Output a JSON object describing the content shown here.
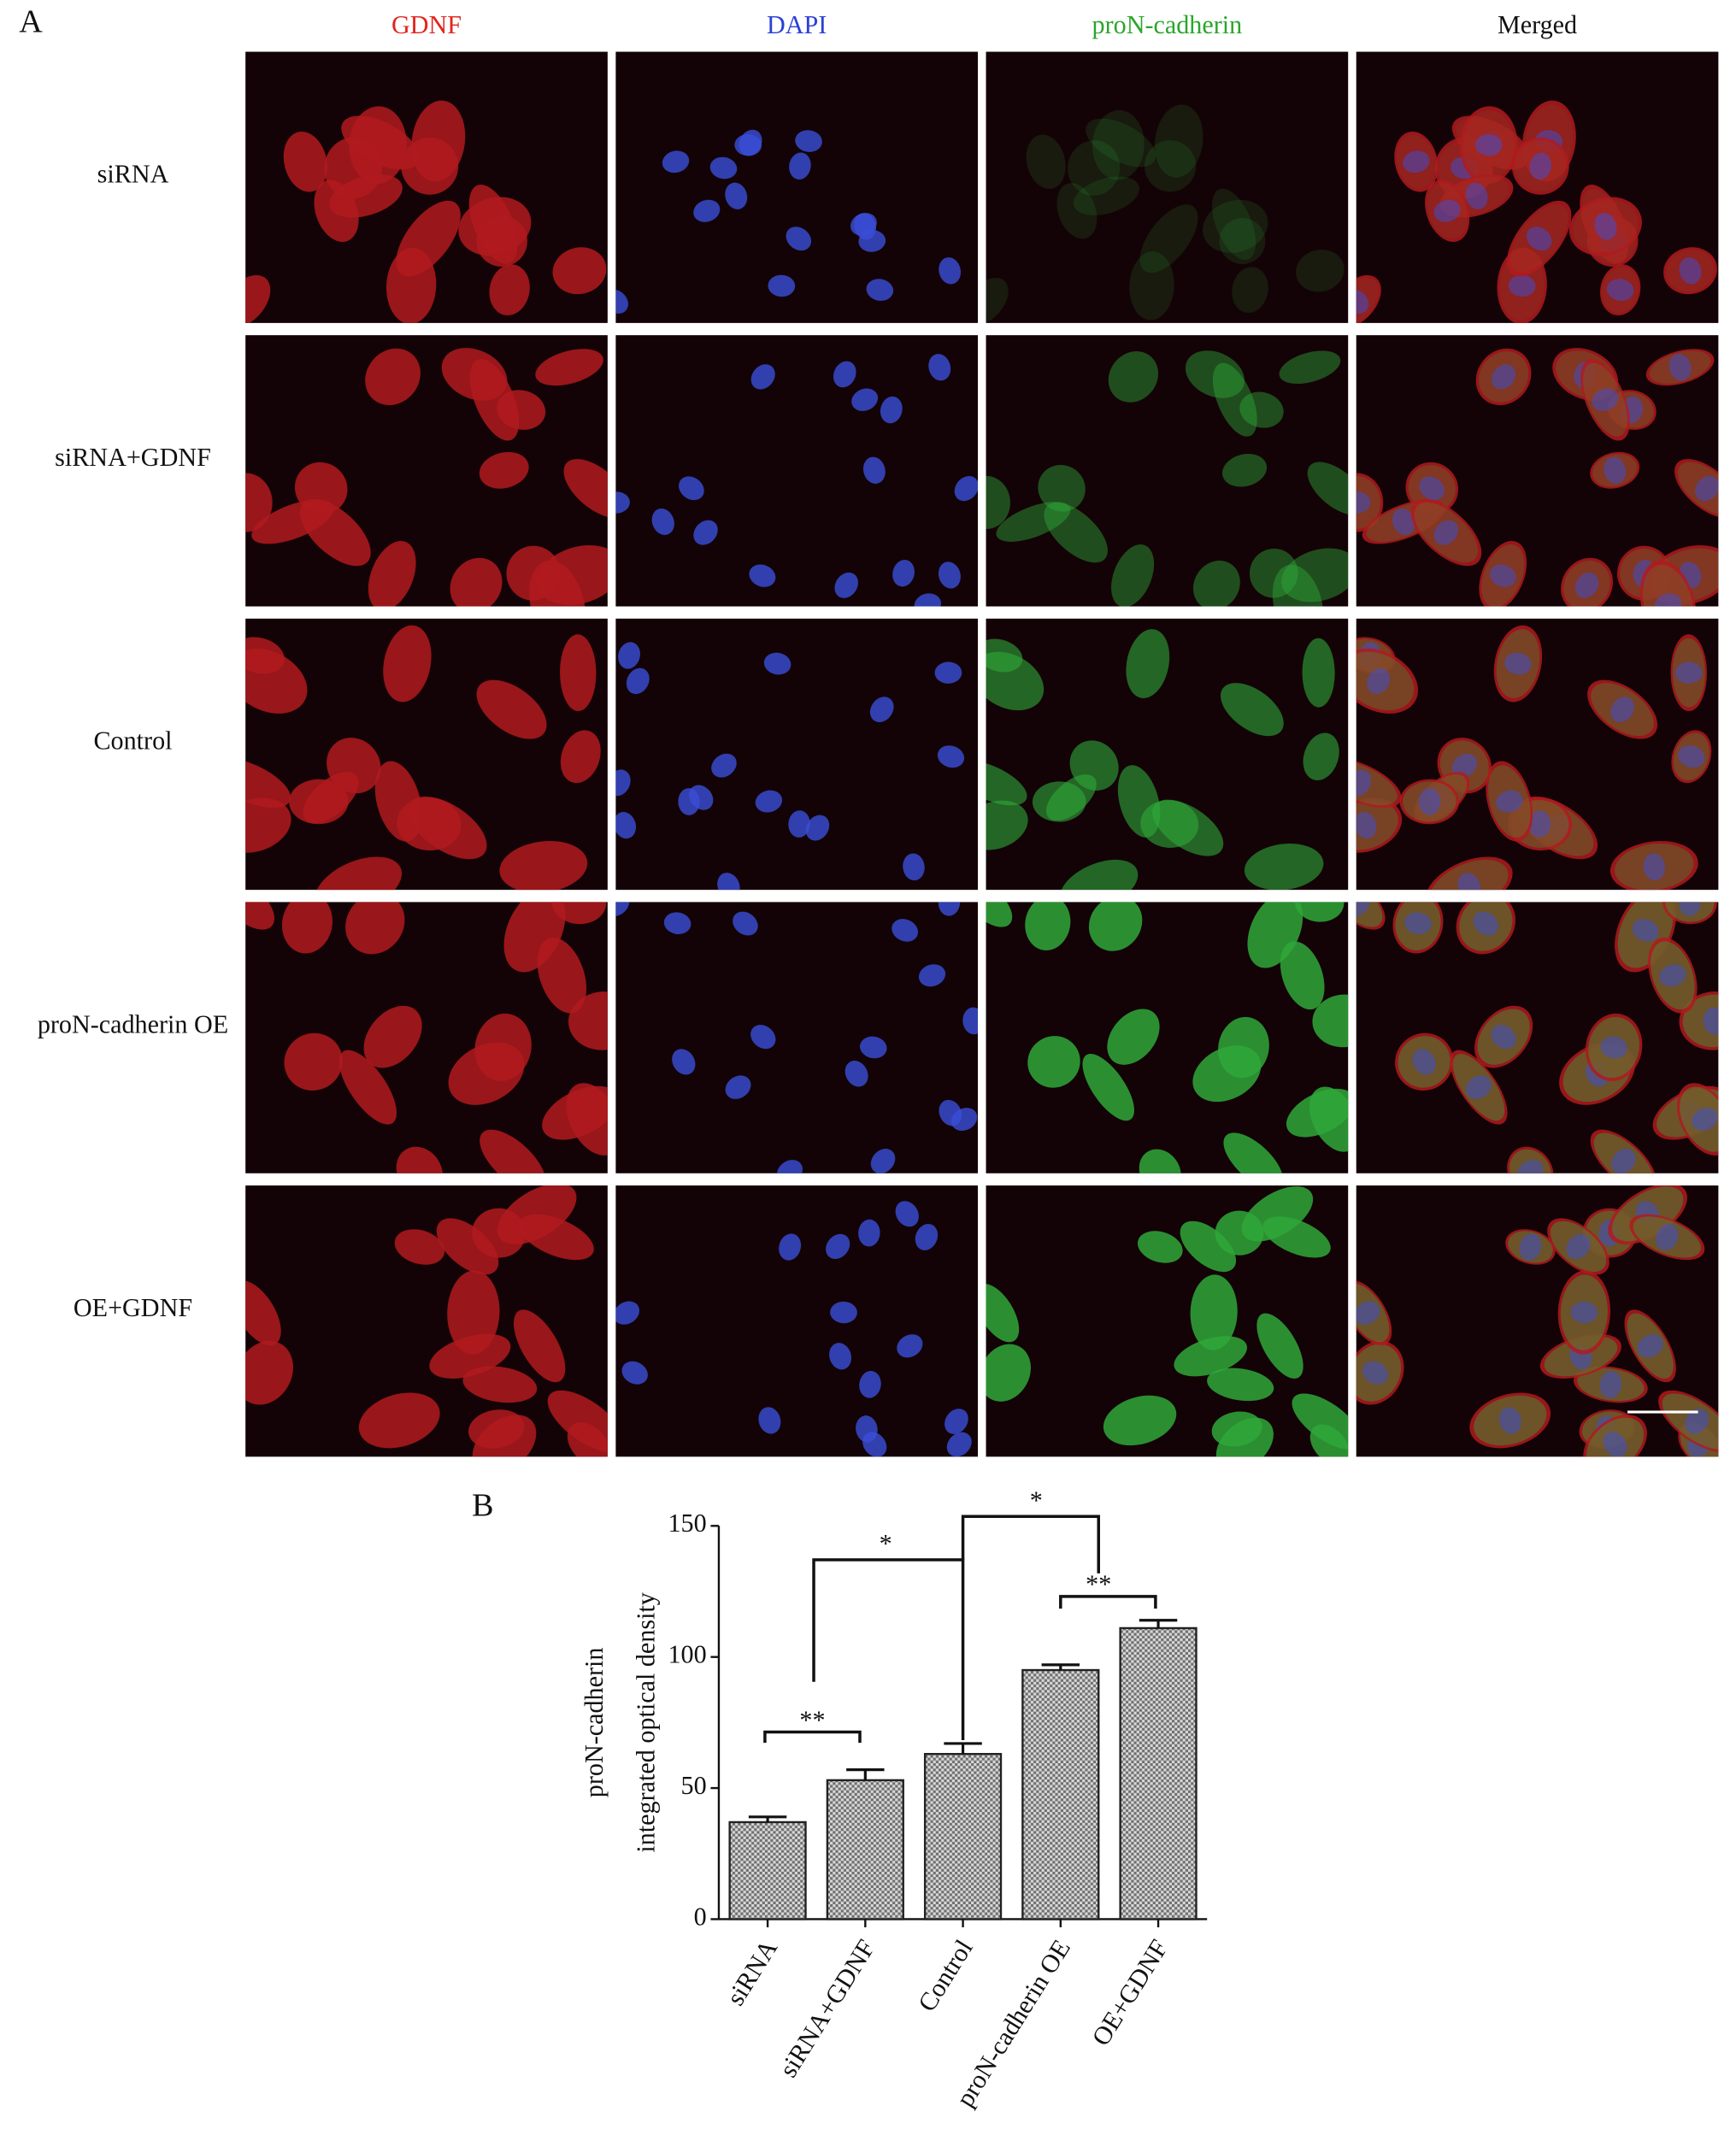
{
  "figure": {
    "panel_a": {
      "label": "A",
      "columns": [
        "GDNF",
        "DAPI",
        "proN-cadherin",
        "Merged"
      ],
      "column_colors": [
        "#e0261e",
        "#2b3fd6",
        "#2aa52a",
        "#111111"
      ],
      "rows": [
        "siRNA",
        "siRNA+GDNF",
        "Control",
        "proN-cadherin OE",
        "OE+GDNF"
      ]
    },
    "panel_b": {
      "label": "B"
    }
  },
  "chart_data": {
    "type": "bar",
    "y_label": [
      "proN-cadherin",
      "integrated optical density"
    ],
    "categories": [
      "siRNA",
      "siRNA+GDNF",
      "Control",
      "proN-cadherin OE",
      "OE+GDNF"
    ],
    "values": [
      37,
      53,
      63,
      95,
      111
    ],
    "errors": [
      2,
      4,
      4,
      2,
      3
    ],
    "color": "#8a8a8a",
    "ylim": [
      0,
      150
    ],
    "yticks": [
      0,
      50,
      100,
      150
    ],
    "annotations": [
      "**",
      "*",
      "*",
      "**"
    ]
  }
}
